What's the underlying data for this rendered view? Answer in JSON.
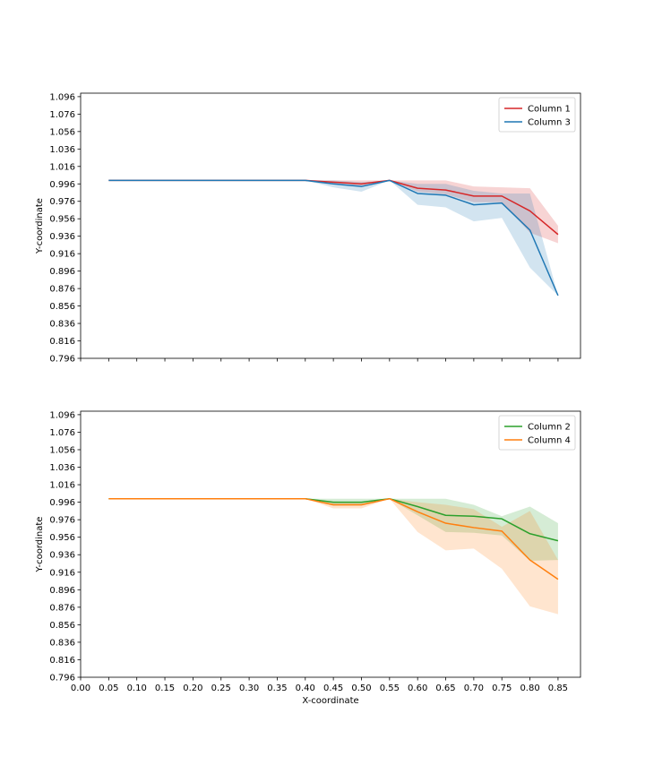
{
  "chart_data": [
    {
      "type": "line",
      "xlabel": "",
      "ylabel": "Y-coordinate",
      "xlim": [
        0.0,
        0.89
      ],
      "ylim": [
        0.796,
        1.1
      ],
      "xticks": [
        "0.00",
        "0.05",
        "0.10",
        "0.15",
        "0.20",
        "0.25",
        "0.30",
        "0.35",
        "0.40",
        "0.45",
        "0.50",
        "0.55",
        "0.60",
        "0.65",
        "0.70",
        "0.75",
        "0.80",
        "0.85"
      ],
      "show_xtick_labels": false,
      "yticks": [
        "0.796",
        "0.816",
        "0.836",
        "0.856",
        "0.876",
        "0.896",
        "0.916",
        "0.936",
        "0.956",
        "0.976",
        "0.996",
        "1.016",
        "1.036",
        "1.056",
        "1.076",
        "1.096"
      ],
      "legend_position": "top-right",
      "x": [
        0.05,
        0.4,
        0.45,
        0.5,
        0.55,
        0.6,
        0.65,
        0.7,
        0.75,
        0.8,
        0.85
      ],
      "series": [
        {
          "name": "Column 1",
          "color": "#d62728",
          "values": [
            1.0,
            1.0,
            0.998,
            0.996,
            1.0,
            0.991,
            0.989,
            0.982,
            0.982,
            0.965,
            0.938
          ],
          "lower": [
            1.0,
            1.0,
            0.996,
            0.993,
            1.0,
            0.987,
            0.984,
            0.975,
            0.975,
            0.94,
            0.928
          ],
          "upper": [
            1.0,
            1.0,
            1.0,
            1.0,
            1.0,
            1.0,
            1.0,
            0.993,
            0.992,
            0.991,
            0.948
          ]
        },
        {
          "name": "Column 3",
          "color": "#1f77b4",
          "values": [
            1.0,
            1.0,
            0.996,
            0.993,
            1.0,
            0.985,
            0.983,
            0.972,
            0.974,
            0.943,
            0.868
          ],
          "lower": [
            1.0,
            1.0,
            0.992,
            0.987,
            1.0,
            0.972,
            0.969,
            0.953,
            0.957,
            0.9,
            0.868
          ],
          "upper": [
            1.0,
            1.0,
            1.0,
            0.998,
            1.0,
            0.996,
            0.996,
            0.988,
            0.985,
            0.985,
            0.868
          ]
        }
      ]
    },
    {
      "type": "line",
      "xlabel": "X-coordinate",
      "ylabel": "Y-coordinate",
      "xlim": [
        0.0,
        0.89
      ],
      "ylim": [
        0.796,
        1.1
      ],
      "xticks": [
        "0.00",
        "0.05",
        "0.10",
        "0.15",
        "0.20",
        "0.25",
        "0.30",
        "0.35",
        "0.40",
        "0.45",
        "0.50",
        "0.55",
        "0.60",
        "0.65",
        "0.70",
        "0.75",
        "0.80",
        "0.85"
      ],
      "show_xtick_labels": true,
      "yticks": [
        "0.796",
        "0.816",
        "0.836",
        "0.856",
        "0.876",
        "0.896",
        "0.916",
        "0.936",
        "0.956",
        "0.976",
        "0.996",
        "1.016",
        "1.036",
        "1.056",
        "1.076",
        "1.096"
      ],
      "legend_position": "top-right",
      "x": [
        0.05,
        0.4,
        0.45,
        0.5,
        0.55,
        0.6,
        0.65,
        0.7,
        0.75,
        0.8,
        0.85
      ],
      "series": [
        {
          "name": "Column 2",
          "color": "#2ca02c",
          "values": [
            1.0,
            1.0,
            0.996,
            0.996,
            1.0,
            0.991,
            0.981,
            0.98,
            0.977,
            0.96,
            0.952
          ],
          "lower": [
            1.0,
            1.0,
            0.992,
            0.992,
            1.0,
            0.981,
            0.962,
            0.961,
            0.958,
            0.929,
            0.93
          ],
          "upper": [
            1.0,
            1.0,
            1.0,
            1.0,
            1.0,
            1.0,
            1.0,
            0.993,
            0.98,
            0.991,
            0.972
          ]
        },
        {
          "name": "Column 4",
          "color": "#ff7f0e",
          "values": [
            1.0,
            1.0,
            0.993,
            0.993,
            1.0,
            0.985,
            0.972,
            0.967,
            0.963,
            0.93,
            0.908
          ],
          "lower": [
            1.0,
            1.0,
            0.989,
            0.989,
            1.0,
            0.962,
            0.941,
            0.943,
            0.92,
            0.877,
            0.868
          ],
          "upper": [
            1.0,
            1.0,
            0.997,
            0.996,
            1.0,
            0.996,
            0.993,
            0.988,
            0.968,
            0.986,
            0.93
          ]
        }
      ]
    }
  ]
}
